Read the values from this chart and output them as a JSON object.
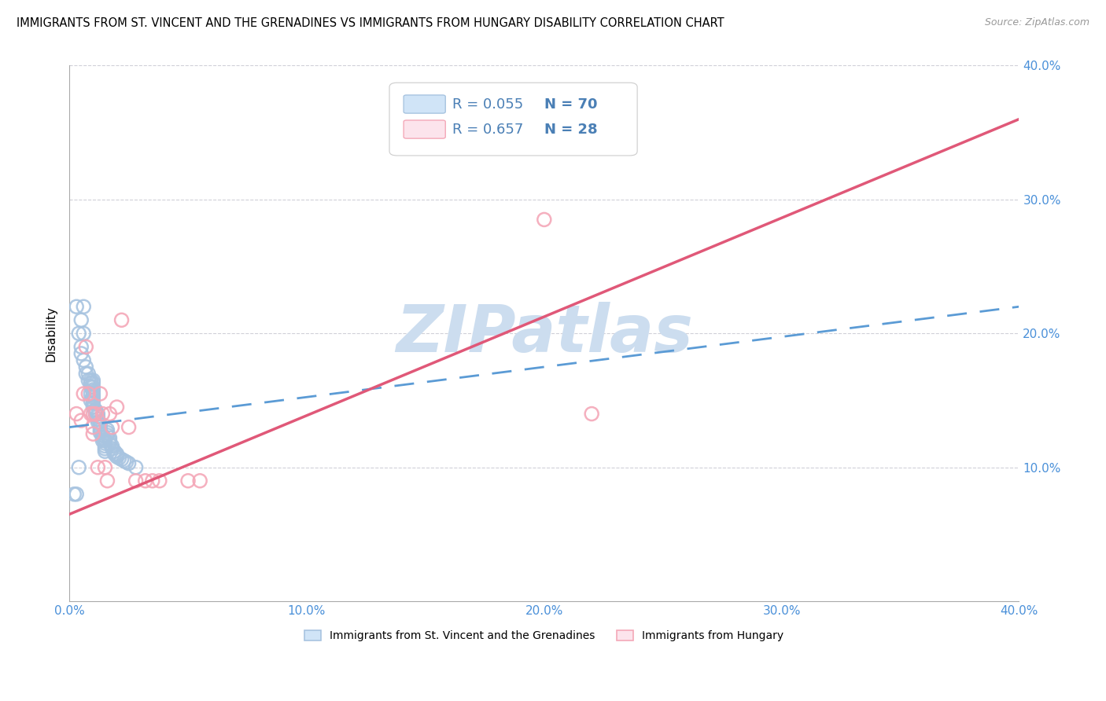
{
  "title": "IMMIGRANTS FROM ST. VINCENT AND THE GRENADINES VS IMMIGRANTS FROM HUNGARY DISABILITY CORRELATION CHART",
  "source": "Source: ZipAtlas.com",
  "ylabel": "Disability",
  "xlabel_blue": "Immigrants from St. Vincent and the Grenadines",
  "xlabel_pink": "Immigrants from Hungary",
  "xlim": [
    0.0,
    0.4
  ],
  "ylim": [
    0.0,
    0.4
  ],
  "xtick_vals": [
    0.0,
    0.1,
    0.2,
    0.3,
    0.4
  ],
  "ytick_vals": [
    0.1,
    0.2,
    0.3,
    0.4
  ],
  "ytick_labels": [
    "10.0%",
    "20.0%",
    "30.0%",
    "40.0%"
  ],
  "xtick_labels": [
    "0.0%",
    "10.0%",
    "20.0%",
    "30.0%",
    "40.0%"
  ],
  "legend_blue_R": "0.055",
  "legend_blue_N": "70",
  "legend_pink_R": "0.657",
  "legend_pink_N": "28",
  "blue_scatter_color": "#a8c4e0",
  "pink_scatter_color": "#f4a8b8",
  "blue_line_color": "#5b9bd5",
  "pink_line_color": "#e05878",
  "legend_rect_blue_face": "#d0e4f7",
  "legend_rect_pink_face": "#fce4ec",
  "legend_text_color": "#4a7fb5",
  "legend_N_color": "#4a7fb5",
  "tick_color": "#4a90d9",
  "watermark_text": "ZIPatlas",
  "watermark_color": "#ccddef",
  "grid_color": "#d0d0d8",
  "blue_scatter_x": [
    0.002,
    0.003,
    0.004,
    0.005,
    0.005,
    0.005,
    0.006,
    0.006,
    0.006,
    0.007,
    0.007,
    0.008,
    0.008,
    0.009,
    0.009,
    0.009,
    0.009,
    0.009,
    0.01,
    0.01,
    0.01,
    0.01,
    0.01,
    0.01,
    0.01,
    0.01,
    0.01,
    0.01,
    0.01,
    0.01,
    0.011,
    0.011,
    0.011,
    0.012,
    0.012,
    0.012,
    0.012,
    0.013,
    0.013,
    0.013,
    0.013,
    0.014,
    0.014,
    0.014,
    0.015,
    0.015,
    0.015,
    0.015,
    0.015,
    0.016,
    0.016,
    0.016,
    0.017,
    0.017,
    0.017,
    0.018,
    0.018,
    0.019,
    0.019,
    0.02,
    0.02,
    0.02,
    0.021,
    0.022,
    0.023,
    0.024,
    0.025,
    0.028,
    0.003,
    0.004
  ],
  "blue_scatter_y": [
    0.08,
    0.22,
    0.2,
    0.21,
    0.19,
    0.185,
    0.22,
    0.2,
    0.18,
    0.175,
    0.17,
    0.17,
    0.165,
    0.165,
    0.163,
    0.16,
    0.155,
    0.15,
    0.165,
    0.163,
    0.16,
    0.158,
    0.157,
    0.155,
    0.154,
    0.153,
    0.152,
    0.15,
    0.148,
    0.145,
    0.143,
    0.142,
    0.14,
    0.14,
    0.138,
    0.136,
    0.134,
    0.132,
    0.13,
    0.128,
    0.126,
    0.124,
    0.122,
    0.12,
    0.12,
    0.118,
    0.116,
    0.114,
    0.112,
    0.128,
    0.126,
    0.124,
    0.122,
    0.12,
    0.118,
    0.116,
    0.114,
    0.112,
    0.11,
    0.11,
    0.109,
    0.108,
    0.107,
    0.106,
    0.105,
    0.104,
    0.103,
    0.1,
    0.08,
    0.1
  ],
  "pink_scatter_x": [
    0.003,
    0.005,
    0.006,
    0.007,
    0.008,
    0.009,
    0.01,
    0.01,
    0.01,
    0.011,
    0.012,
    0.013,
    0.014,
    0.015,
    0.016,
    0.017,
    0.018,
    0.02,
    0.022,
    0.025,
    0.028,
    0.032,
    0.035,
    0.038,
    0.05,
    0.055,
    0.2,
    0.22
  ],
  "pink_scatter_y": [
    0.14,
    0.135,
    0.155,
    0.19,
    0.155,
    0.14,
    0.14,
    0.13,
    0.125,
    0.14,
    0.1,
    0.155,
    0.14,
    0.1,
    0.09,
    0.14,
    0.13,
    0.145,
    0.21,
    0.13,
    0.09,
    0.09,
    0.09,
    0.09,
    0.09,
    0.09,
    0.285,
    0.14
  ],
  "blue_line_x0": 0.0,
  "blue_line_x1": 0.4,
  "blue_line_y0": 0.13,
  "blue_line_y1": 0.22,
  "pink_line_x0": 0.0,
  "pink_line_x1": 0.4,
  "pink_line_y0": 0.065,
  "pink_line_y1": 0.36
}
